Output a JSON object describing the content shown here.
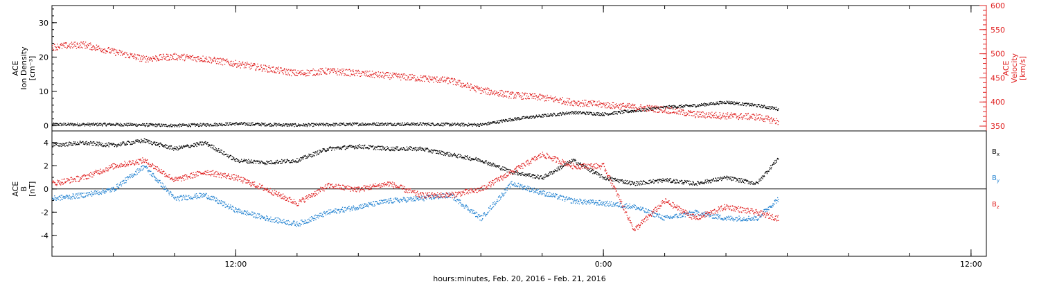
{
  "chart_data": [
    {
      "type": "scatter",
      "panel": "plasma",
      "ylabel_left": [
        "ACE",
        "Ion Density",
        "[cm⁻³]"
      ],
      "ylabel_right": [
        "ACE",
        "Velocity",
        "[km/s]"
      ],
      "xlim_hours": [
        6,
        36.5
      ],
      "ylim_left": [
        -1.5,
        35
      ],
      "yticks_left": [
        0,
        10,
        20,
        30
      ],
      "ylim_right": [
        340,
        600
      ],
      "yticks_right": [
        350,
        400,
        450,
        500,
        550,
        600
      ],
      "right_axis_color": "#e02020",
      "series": [
        {
          "axis": "left",
          "color": "#000000",
          "x": [
            6,
            8,
            10,
            11,
            12,
            14,
            16,
            18,
            20,
            21,
            22,
            23,
            24,
            25,
            26,
            27,
            28,
            29,
            29.7
          ],
          "y": [
            0.5,
            0.5,
            0.2,
            0.4,
            0.7,
            0.3,
            0.6,
            0.6,
            0.4,
            2.0,
            3.0,
            4.0,
            3.5,
            4.5,
            5.5,
            6.0,
            7.0,
            6.0,
            5.0
          ]
        },
        {
          "axis": "right",
          "color": "#e02020",
          "x": [
            6,
            7,
            8,
            9,
            10,
            11,
            12,
            13,
            14,
            15,
            16,
            17,
            18,
            19,
            20,
            21,
            22,
            23,
            24,
            25,
            26,
            27,
            28,
            29,
            29.7
          ],
          "y": [
            515,
            520,
            505,
            490,
            495,
            490,
            480,
            470,
            460,
            465,
            460,
            455,
            450,
            445,
            425,
            415,
            410,
            400,
            395,
            390,
            385,
            375,
            372,
            370,
            360
          ]
        }
      ]
    },
    {
      "type": "scatter",
      "panel": "magnetic",
      "ylabel_left": [
        "ACE",
        "B",
        "[nT]"
      ],
      "xlim_hours": [
        6,
        36.5
      ],
      "ylim_left": [
        -5.8,
        5
      ],
      "yticks_left": [
        4,
        2,
        0,
        -2,
        -4
      ],
      "zero_line": true,
      "xticks": [
        "12:00",
        "0:00",
        "12:00"
      ],
      "xtick_hours": [
        12,
        24,
        36
      ],
      "xlabel": "hours:minutes, Feb. 20, 2016 – Feb. 21, 2016",
      "series": [
        {
          "name": "Bx",
          "color": "#000000",
          "x": [
            6,
            7,
            8,
            9,
            10,
            11,
            12,
            13,
            14,
            15,
            16,
            17,
            18,
            19,
            20,
            21,
            22,
            23,
            24,
            25,
            26,
            27,
            28,
            29,
            29.7
          ],
          "y": [
            3.8,
            4.0,
            3.8,
            4.2,
            3.5,
            4.0,
            2.5,
            2.3,
            2.5,
            3.5,
            3.7,
            3.5,
            3.5,
            3.0,
            2.5,
            1.5,
            1.0,
            2.5,
            1.0,
            0.5,
            0.8,
            0.5,
            1.0,
            0.5,
            2.7
          ]
        },
        {
          "name": "By",
          "color": "#1f80d0",
          "x": [
            6,
            7,
            8,
            9,
            10,
            11,
            12,
            13,
            14,
            15,
            16,
            17,
            18,
            19,
            20,
            21,
            22,
            23,
            24,
            25,
            26,
            27,
            28,
            29,
            29.7
          ],
          "y": [
            -0.8,
            -0.5,
            0.0,
            2.0,
            -0.8,
            -0.5,
            -1.8,
            -2.5,
            -3.0,
            -2.0,
            -1.5,
            -1.0,
            -0.8,
            -0.5,
            -2.5,
            0.5,
            -0.3,
            -1.0,
            -1.2,
            -1.5,
            -2.5,
            -2.0,
            -2.5,
            -2.5,
            -0.8
          ]
        },
        {
          "name": "Bz",
          "color": "#e02020",
          "x": [
            6,
            7,
            8,
            9,
            10,
            11,
            12,
            13,
            14,
            15,
            16,
            17,
            18,
            19,
            20,
            21,
            22,
            23,
            24,
            25,
            26,
            27,
            28,
            29,
            29.7
          ],
          "y": [
            0.5,
            1.0,
            2.0,
            2.5,
            0.8,
            1.5,
            1.0,
            0.0,
            -1.2,
            0.3,
            0.0,
            0.5,
            -0.5,
            -0.5,
            0.0,
            1.5,
            3.0,
            2.0,
            2.0,
            -3.5,
            -1.0,
            -2.5,
            -1.5,
            -2.0,
            -2.5
          ]
        }
      ],
      "legend_placement": "right"
    }
  ]
}
